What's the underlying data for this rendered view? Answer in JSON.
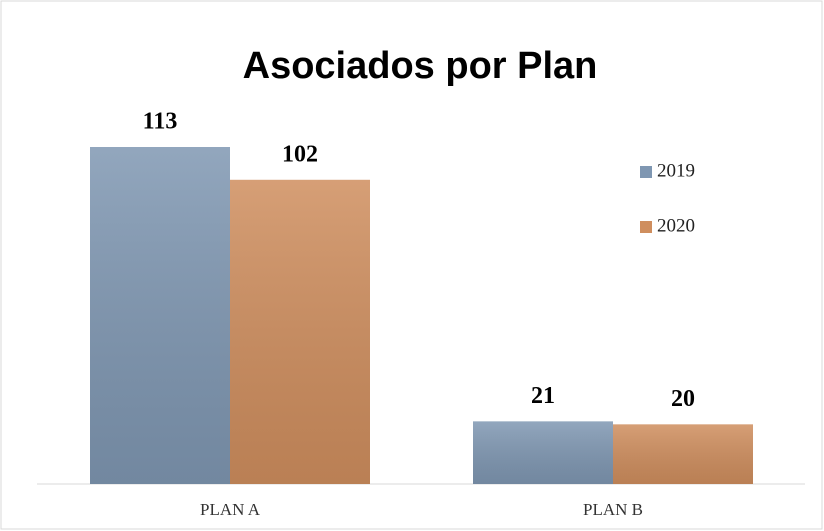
{
  "chart_data": {
    "type": "bar",
    "title": "Asociados por Plan",
    "categories": [
      "PLAN A",
      "PLAN B"
    ],
    "series": [
      {
        "name": "2019",
        "color": "#7f97b2",
        "values": [
          113,
          21
        ]
      },
      {
        "name": "2020",
        "color": "#cf8e5e",
        "values": [
          102,
          20
        ]
      }
    ]
  }
}
